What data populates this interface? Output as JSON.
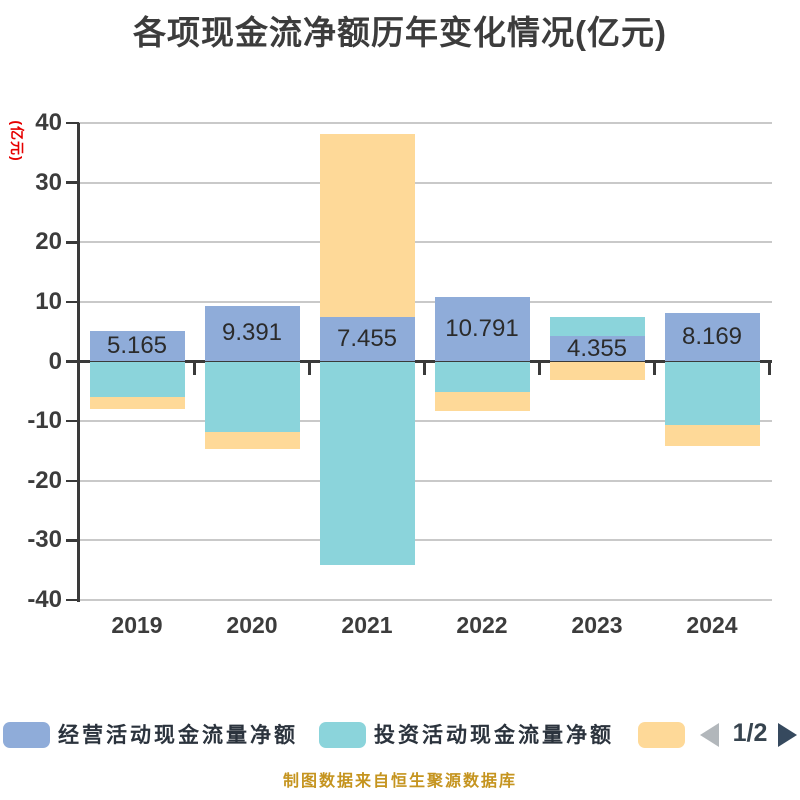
{
  "title": "各项现金流净额历年变化情况(亿元)",
  "y_axis_title": "(亿元)",
  "caption": "制图数据来自恒生聚源数据库",
  "legend": {
    "items": [
      {
        "label": "经营活动现金流量净额",
        "color": "#8FACD9"
      },
      {
        "label": "投资活动现金流量净额",
        "color": "#8BD4DB"
      },
      {
        "label": "",
        "color": "#FED998"
      }
    ],
    "pagination": {
      "page_indicator": "1/2",
      "prev_icon_color": "#B2B7BB",
      "next_icon_color": "#36495E"
    }
  },
  "chart_data": {
    "type": "bar",
    "stacked": true,
    "title": "各项现金流净额历年变化情况(亿元)",
    "ylabel": "(亿元)",
    "categories": [
      "2019",
      "2020",
      "2021",
      "2022",
      "2023",
      "2024"
    ],
    "series": [
      {
        "name": "经营活动现金流量净额",
        "color": "#8FACD9",
        "values": [
          5.165,
          9.391,
          7.455,
          10.791,
          4.355,
          8.169
        ]
      },
      {
        "name": "投资活动现金流量净额",
        "color": "#8BD4DB",
        "values": [
          -5.9,
          -11.8,
          -34.1,
          -5.1,
          3.1,
          -10.7
        ]
      },
      {
        "name": "",
        "color": "#FED998",
        "values": [
          -2.1,
          -2.9,
          30.7,
          -3.2,
          -3.1,
          -3.5
        ]
      }
    ],
    "data_labels": [
      "5.165",
      "9.391",
      "7.455",
      "10.791",
      "4.355",
      "8.169"
    ],
    "ylim": [
      -40,
      40
    ],
    "ytick_labels": [
      "40",
      "30",
      "20",
      "10",
      "0",
      "-10",
      "-20",
      "-30",
      "-40"
    ],
    "grid": true,
    "legend_position": "bottom"
  },
  "colors": {
    "grid": "#C9C9C9",
    "axis": "#3A3A3A",
    "title_text": "#3C3C3C",
    "value_label_text": "#2B2B2B",
    "y_axis_title_text": "#E60000",
    "caption_text": "#C5941F"
  }
}
